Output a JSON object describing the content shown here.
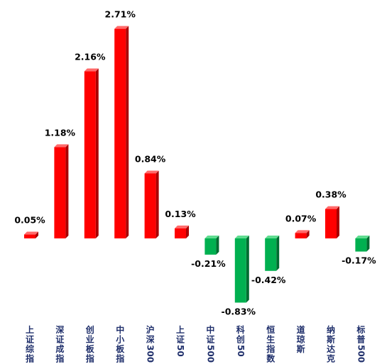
{
  "chart_data": {
    "type": "bar",
    "categories": [
      "上证综指",
      "深证成指",
      "创业板指",
      "中小板指",
      "沪深300",
      "上证50",
      "中证500",
      "科创50",
      "恒生指数",
      "道琼斯",
      "纳斯达克",
      "标普500"
    ],
    "values": [
      0.05,
      1.18,
      2.16,
      2.71,
      0.84,
      0.13,
      -0.21,
      -0.83,
      -0.42,
      0.07,
      0.38,
      -0.17
    ],
    "value_labels": [
      "0.05%",
      "1.18%",
      "2.16%",
      "2.71%",
      "0.84%",
      "0.13%",
      "-0.21%",
      "-0.83%",
      "-0.42%",
      "0.07%",
      "0.38%",
      "-0.17%"
    ],
    "title": "",
    "xlabel": "",
    "ylabel": "",
    "ylim": [
      -1.0,
      2.8
    ],
    "grid": false,
    "legend": "none",
    "colors": {
      "positive_front": "#ff0000",
      "positive_side": "#a80000",
      "positive_top": "#ff6a6a",
      "negative_front": "#00b050",
      "negative_side": "#006b30",
      "negative_top": "#5fdc90"
    }
  }
}
